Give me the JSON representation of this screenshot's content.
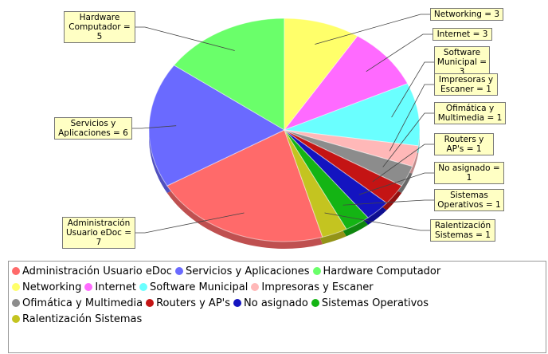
{
  "chart_data": {
    "type": "pie",
    "categories": [
      "Administración Usuario eDoc",
      "Servicios y Aplicaciones",
      "Hardware Computador",
      "Networking",
      "Internet",
      "Software Municipal",
      "Impresoras y Escaner",
      "Ofimática y Multimedia",
      "Routers y AP's",
      "No asignado",
      "Sistemas Operativos",
      "Ralentización Sistemas"
    ],
    "values": [
      7,
      6,
      5,
      3,
      3,
      3,
      1,
      1,
      1,
      1,
      1,
      1
    ],
    "value_labels": [
      "Administración Usuario eDoc = 7",
      "Servicios y Aplicaciones = 6",
      "Hardware Computador = 5",
      "Networking = 3",
      "Internet = 3",
      "Software Municipal = 3",
      "Impresoras y Escaner = 1",
      "Ofimática y Multimedia = 1",
      "Routers y AP's = 1",
      "No asignado = 1",
      "Sistemas Operativos = 1",
      "Ralentización Sistemas = 1"
    ],
    "colors": [
      "#ff6a6a",
      "#6a6aff",
      "#6aff6a",
      "#ffff6a",
      "#ff6aff",
      "#6affff",
      "#ffb8b8",
      "#8c8c8c",
      "#c41414",
      "#1414c0",
      "#14b414",
      "#c4c420"
    ],
    "legend": "bottom"
  }
}
